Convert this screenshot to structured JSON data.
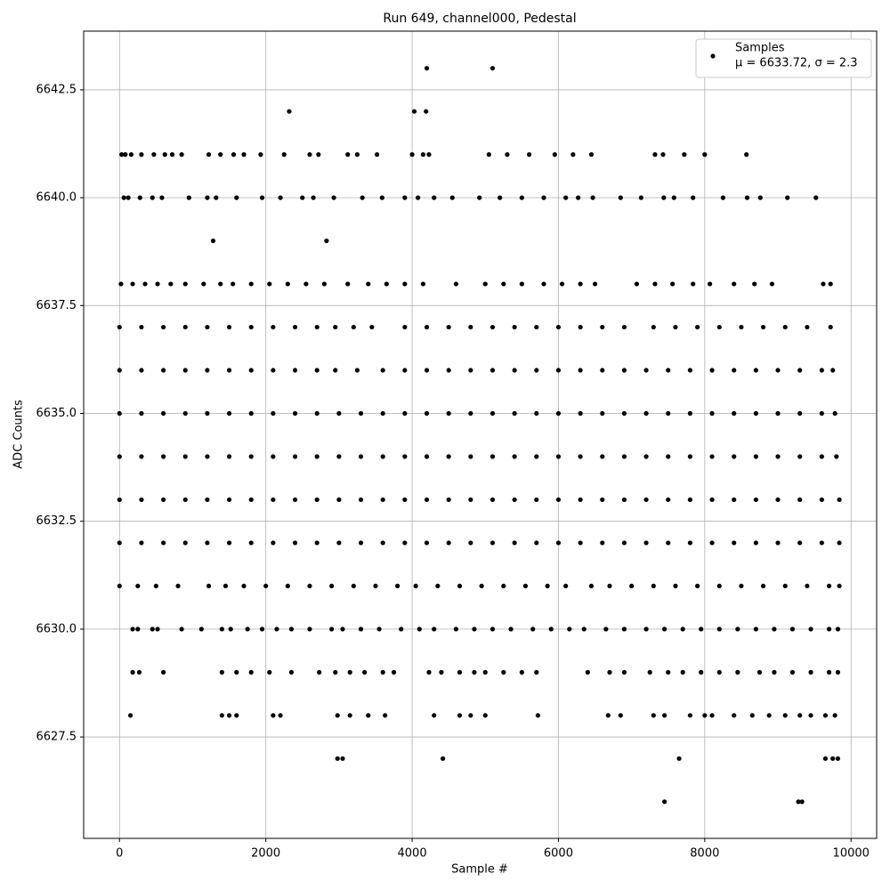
{
  "chart_data": {
    "type": "scatter",
    "title": "Run 649, channel000, Pedestal",
    "x_label": "Sample #",
    "y_label": "ADC Counts",
    "legend_name": "Samples",
    "legend_stats": "μ = 6633.72, σ = 2.3",
    "legend_position": "upper right",
    "color": "#000000",
    "grid": true,
    "xlim": [
      -490,
      10350
    ],
    "ylim": [
      6625.15,
      6643.86
    ],
    "xticks": [
      0,
      2000,
      4000,
      6000,
      8000,
      10000
    ],
    "yticks": [
      6627.5,
      {
        "value": 6630,
        "label": "6630.0"
      },
      6632.5,
      {
        "value": 6635,
        "label": "6635.0"
      },
      6637.5,
      {
        "value": 6640,
        "label": "6640.0"
      },
      6642.5
    ],
    "points": [
      {
        "y": 6643,
        "x": [
          4200,
          5100
        ]
      },
      {
        "y": 6642,
        "x": [
          2320,
          4030,
          4190
        ]
      },
      {
        "y": 6641,
        "x": [
          30,
          80,
          160,
          300,
          470,
          620,
          720,
          850,
          1220,
          1380,
          1560,
          1700,
          1930,
          2250,
          2600,
          2720,
          3120,
          3250,
          3520,
          4000,
          4150,
          4230,
          5050,
          5300,
          5600,
          5950,
          6200,
          6450,
          7320,
          7430,
          7720,
          8000,
          8570
        ]
      },
      {
        "y": 6640,
        "x": [
          60,
          120,
          280,
          450,
          580,
          950,
          1200,
          1320,
          1600,
          1950,
          2200,
          2500,
          2650,
          2930,
          3320,
          3590,
          3900,
          4080,
          4300,
          4550,
          4920,
          5200,
          5500,
          5800,
          6100,
          6270,
          6470,
          6850,
          7130,
          7440,
          7580,
          7840,
          8250,
          8580,
          8760,
          9130,
          9520
        ]
      },
      {
        "y": 6639,
        "x": [
          1280,
          2830
        ]
      },
      {
        "y": 6638,
        "x": [
          20,
          180,
          350,
          520,
          700,
          900,
          1150,
          1380,
          1550,
          1800,
          2050,
          2300,
          2550,
          2800,
          3120,
          3400,
          3650,
          3900,
          4150,
          4600,
          5000,
          5250,
          5500,
          5800,
          6050,
          6300,
          6500,
          7070,
          7320,
          7560,
          7840,
          8070,
          8400,
          8680,
          8920,
          9620,
          9720
        ]
      },
      {
        "y": 6637,
        "x": [
          0,
          300,
          600,
          900,
          1200,
          1500,
          1800,
          2100,
          2400,
          2700,
          2950,
          3200,
          3450,
          3900,
          4200,
          4500,
          4800,
          5100,
          5400,
          5700,
          6000,
          6300,
          6600,
          6900,
          7300,
          7600,
          7900,
          8200,
          8500,
          8800,
          9100,
          9400,
          9720
        ]
      },
      {
        "y": 6636,
        "x": [
          0,
          300,
          600,
          900,
          1200,
          1500,
          1800,
          2100,
          2400,
          2700,
          2950,
          3250,
          3600,
          3900,
          4200,
          4500,
          4800,
          5100,
          5400,
          5700,
          6000,
          6300,
          6600,
          6900,
          7200,
          7500,
          7800,
          8100,
          8400,
          8700,
          9000,
          9300,
          9600,
          9750
        ]
      },
      {
        "y": 6635,
        "x": [
          0,
          300,
          600,
          900,
          1200,
          1500,
          1800,
          2100,
          2400,
          2700,
          3000,
          3300,
          3600,
          3900,
          4200,
          4500,
          4800,
          5100,
          5400,
          5700,
          6000,
          6300,
          6600,
          6900,
          7200,
          7500,
          7800,
          8100,
          8400,
          8700,
          9000,
          9300,
          9600,
          9780
        ]
      },
      {
        "y": 6634,
        "x": [
          0,
          300,
          600,
          900,
          1200,
          1500,
          1800,
          2100,
          2400,
          2700,
          3000,
          3300,
          3600,
          3900,
          4200,
          4500,
          4800,
          5100,
          5400,
          5700,
          6000,
          6300,
          6600,
          6900,
          7200,
          7500,
          7800,
          8100,
          8400,
          8700,
          9000,
          9300,
          9600,
          9800
        ]
      },
      {
        "y": 6633,
        "x": [
          0,
          300,
          600,
          900,
          1200,
          1500,
          1800,
          2100,
          2400,
          2700,
          3000,
          3300,
          3600,
          3900,
          4200,
          4500,
          4800,
          5100,
          5400,
          5700,
          6000,
          6300,
          6600,
          6900,
          7200,
          7500,
          7800,
          8100,
          8400,
          8700,
          9000,
          9300,
          9600,
          9840
        ]
      },
      {
        "y": 6632,
        "x": [
          0,
          300,
          600,
          900,
          1200,
          1500,
          1800,
          2100,
          2400,
          2700,
          3000,
          3300,
          3600,
          3900,
          4200,
          4500,
          4800,
          5100,
          5400,
          5700,
          6000,
          6300,
          6600,
          6900,
          7200,
          7500,
          7800,
          8100,
          8400,
          8700,
          9000,
          9300,
          9600,
          9840
        ]
      },
      {
        "y": 6631,
        "x": [
          0,
          250,
          500,
          800,
          1220,
          1450,
          1700,
          2000,
          2300,
          2600,
          2900,
          3200,
          3500,
          3800,
          4050,
          4350,
          4650,
          4950,
          5250,
          5550,
          5850,
          6100,
          6450,
          6700,
          7000,
          7300,
          7600,
          7900,
          8200,
          8500,
          8800,
          9100,
          9400,
          9700,
          9840
        ]
      },
      {
        "y": 6630,
        "x": [
          180,
          250,
          450,
          520,
          850,
          1120,
          1400,
          1520,
          1750,
          1950,
          2150,
          2350,
          2600,
          2900,
          3050,
          3300,
          3550,
          3850,
          4100,
          4300,
          4600,
          4850,
          5100,
          5350,
          5650,
          5900,
          6150,
          6350,
          6650,
          6900,
          7200,
          7450,
          7700,
          7950,
          8200,
          8450,
          8700,
          8950,
          9200,
          9450,
          9700,
          9820
        ]
      },
      {
        "y": 6629,
        "x": [
          180,
          270,
          600,
          1400,
          1600,
          1800,
          2050,
          2350,
          2730,
          2950,
          3150,
          3350,
          3600,
          3750,
          4230,
          4400,
          4650,
          4850,
          5000,
          5250,
          5500,
          5700,
          6400,
          6700,
          6900,
          7250,
          7500,
          7700,
          7950,
          8200,
          8450,
          8750,
          8950,
          9200,
          9450,
          9700,
          9820
        ]
      },
      {
        "y": 6628,
        "x": [
          150,
          1400,
          1500,
          1600,
          2100,
          2200,
          2980,
          3150,
          3400,
          3630,
          4300,
          4650,
          4800,
          5000,
          5720,
          6680,
          6850,
          7300,
          7450,
          7800,
          8000,
          8100,
          8400,
          8650,
          8880,
          9100,
          9300,
          9450,
          9650,
          9780
        ]
      },
      {
        "y": 6627,
        "x": [
          2980,
          3050,
          4420,
          7650,
          9650,
          9750,
          9820
        ]
      },
      {
        "y": 6626,
        "x": [
          7450,
          9280,
          9330
        ]
      }
    ]
  }
}
